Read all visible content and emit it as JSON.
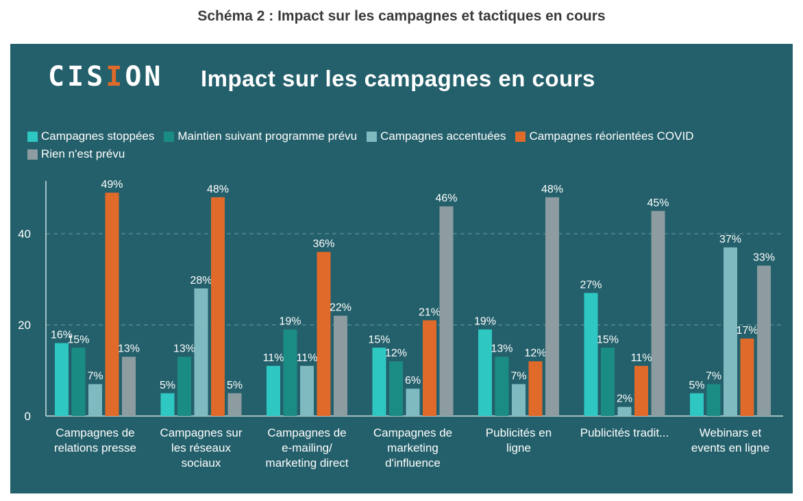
{
  "caption": "Schéma 2 : Impact sur les campagnes et tactiques en cours",
  "logo": {
    "prefix": "CIS",
    "accent": "I",
    "suffix": "ON"
  },
  "colors": {
    "panel_bg": "#24606b",
    "series": [
      "#2ec7c2",
      "#1b8c84",
      "#7fbac1",
      "#e06a2a",
      "#8c9ca0"
    ],
    "logo_accent": "#e06a2a"
  },
  "chart_data": {
    "type": "bar",
    "title": "Impact sur les campagnes en cours",
    "categories": [
      [
        "Campagnes de",
        "relations presse"
      ],
      [
        "Campagnes sur",
        "les réseaux",
        "sociaux"
      ],
      [
        "Campagnes de",
        "e-mailing/",
        "marketing direct"
      ],
      [
        "Campagnes de",
        "marketing",
        "d'influence"
      ],
      [
        "Publicités en",
        "ligne"
      ],
      [
        "Publicités tradit..."
      ],
      [
        "Webinars et",
        "events en ligne"
      ]
    ],
    "series": [
      {
        "name": "Campagnes stoppées",
        "values": [
          16,
          5,
          11,
          15,
          19,
          27,
          5
        ]
      },
      {
        "name": "Maintien suivant programme prévu",
        "values": [
          15,
          13,
          19,
          12,
          13,
          15,
          7
        ]
      },
      {
        "name": "Campagnes accentuées",
        "values": [
          7,
          28,
          11,
          6,
          7,
          2,
          37
        ]
      },
      {
        "name": "Campagnes réorientées COVID",
        "values": [
          49,
          48,
          36,
          21,
          12,
          11,
          17
        ]
      },
      {
        "name": "Rien n'est prévu",
        "values": [
          13,
          5,
          22,
          46,
          48,
          45,
          33
        ]
      }
    ],
    "value_suffix": "%",
    "ylim": [
      0,
      50
    ],
    "yticks": [
      0,
      20,
      40
    ],
    "grid": true,
    "legend_position": "top-left"
  }
}
